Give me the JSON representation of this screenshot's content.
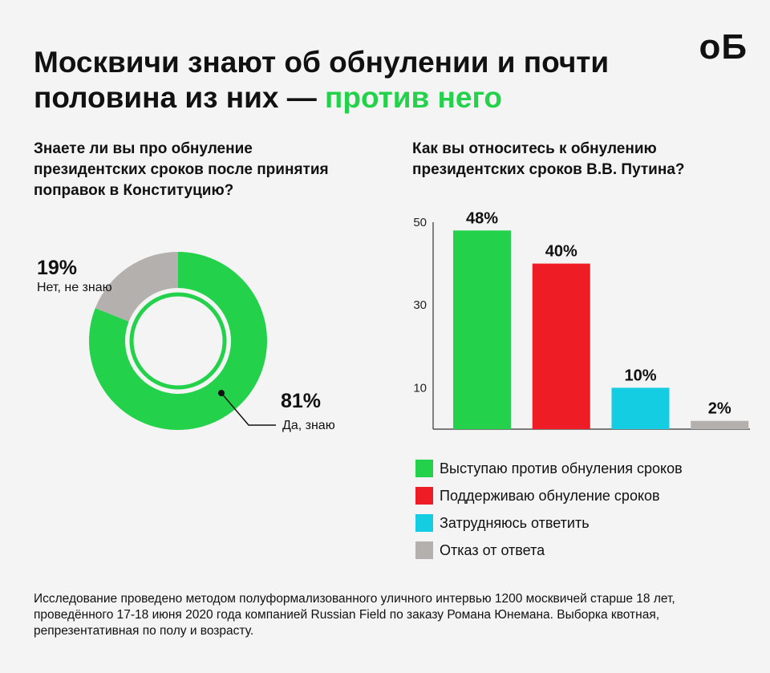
{
  "header": {
    "title_main": "Москвичи знают об обнулении и почти половина из них — ",
    "title_accent": "против него",
    "logo": "оБ"
  },
  "colors": {
    "green": "#23d24a",
    "red": "#ee1c25",
    "cyan": "#14cde3",
    "gray": "#b4b0ae",
    "accent": "#23d24a"
  },
  "footnote": "Исследование проведено методом полуформализованного уличного интервью 1200 москвичей старше 18 лет, проведённого 17-18 июня 2020 года компанией Russian Field по заказу Романа Юнемана. Выборка квотная, репрезентативная по полу и возрасту.",
  "chart_data": [
    {
      "type": "pie",
      "title": "Знаете ли вы про обнуление президентских сроков после принятия поправок в Конституцию?",
      "slices": [
        {
          "label": "Да, знаю",
          "value": 81,
          "value_label": "81%",
          "color": "#23d24a"
        },
        {
          "label": "Нет, не знаю",
          "value": 19,
          "value_label": "19%",
          "color": "#b4b0ae"
        }
      ]
    },
    {
      "type": "bar",
      "title": "Как вы относитесь к обнулению президентских сроков В.В. Путина?",
      "categories": [
        "Выступаю против обнуления сроков",
        "Поддерживаю обнуление сроков",
        "Затрудняюсь ответить",
        "Отказ от ответа"
      ],
      "values": [
        48,
        40,
        10,
        2
      ],
      "value_labels": [
        "48%",
        "40%",
        "10%",
        "2%"
      ],
      "colors": [
        "#23d24a",
        "#ee1c25",
        "#14cde3",
        "#b4b0ae"
      ],
      "yticks": [
        10,
        30,
        50
      ],
      "ylim": [
        0,
        50
      ],
      "legend_position": "bottom"
    }
  ]
}
